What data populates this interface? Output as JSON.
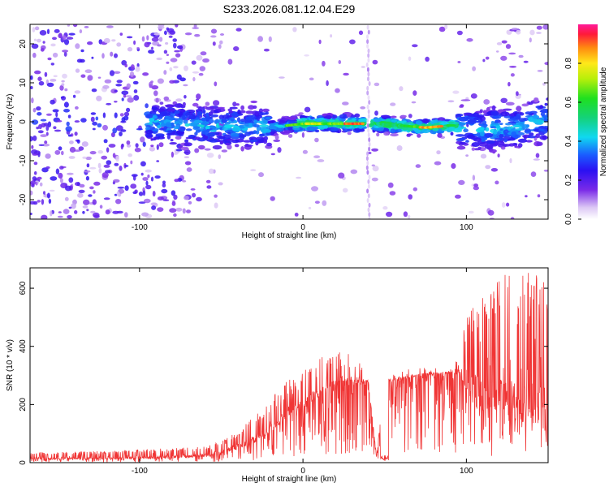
{
  "title": "S233.2026.081.12.04.E29",
  "chart_data": [
    {
      "type": "heatmap",
      "name": "spectrogram",
      "xlabel": "Height of straight line (km)",
      "ylabel": "Frequency (Hz)",
      "xlim": [
        -167,
        150
      ],
      "ylim": [
        -25,
        25
      ],
      "xticks": [
        -100,
        0,
        100
      ],
      "yticks": [
        -20,
        -10,
        0,
        10,
        20
      ],
      "colorbar": {
        "label": "Normalized spectral amplitude",
        "range": [
          0,
          1
        ],
        "ticks": [
          0.0,
          0.2,
          0.4,
          0.6,
          0.8
        ]
      },
      "ridge": {
        "description_x": [
          -90,
          -60,
          -30,
          -10,
          0,
          10,
          20,
          35,
          45,
          60,
          75,
          90,
          110,
          130,
          150
        ],
        "frequency": [
          0,
          -1,
          -1.5,
          -1,
          -0.5,
          -0.5,
          -0.5,
          -0.5,
          -0.5,
          -1,
          -1.5,
          -1,
          -2,
          -1.5,
          1
        ]
      },
      "gap_x": 40
    },
    {
      "type": "line",
      "name": "snr",
      "xlabel": "Height of straight line (km)",
      "ylabel": "SNR (10 * v/v)",
      "xlim": [
        -167,
        150
      ],
      "ylim": [
        0,
        670
      ],
      "xticks": [
        -100,
        0,
        100
      ],
      "yticks": [
        0,
        200,
        400,
        600
      ],
      "color": "#f03535",
      "envelope": {
        "x": [
          -167,
          -120,
          -80,
          -60,
          -50,
          -40,
          -30,
          -20,
          -10,
          0,
          10,
          20,
          30,
          40,
          45,
          50,
          60,
          70,
          80,
          90,
          95,
          100,
          110,
          120,
          130,
          140,
          150
        ],
        "base": [
          15,
          15,
          20,
          25,
          35,
          55,
          80,
          120,
          170,
          200,
          240,
          270,
          280,
          280,
          20,
          280,
          290,
          300,
          305,
          310,
          320,
          270,
          230,
          220,
          215,
          210,
          215
        ],
        "peak": [
          35,
          40,
          50,
          55,
          75,
          110,
          160,
          220,
          280,
          320,
          360,
          390,
          380,
          300,
          20,
          320,
          320,
          325,
          330,
          340,
          360,
          520,
          600,
          640,
          660,
          660,
          640
        ]
      }
    }
  ]
}
